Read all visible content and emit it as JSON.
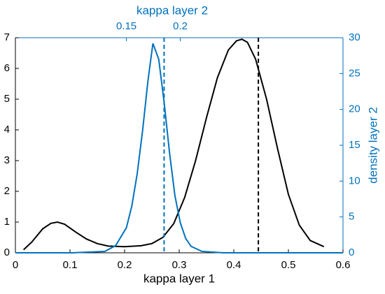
{
  "chart_data": {
    "type": "line",
    "xlabel": "kappa layer 1",
    "x2label": "kappa layer 2",
    "y2label": "density layer 2",
    "xlim": [
      0,
      0.6
    ],
    "xticks": [
      0,
      0.1,
      0.2,
      0.3,
      0.4,
      0.5,
      0.6
    ],
    "x2lim": [
      0.047,
      0.351
    ],
    "x2ticks": [
      0.15,
      0.2
    ],
    "ylim": [
      0,
      7
    ],
    "yticks": [
      0,
      1,
      2,
      3,
      4,
      5,
      6,
      7
    ],
    "y2lim": [
      0,
      30
    ],
    "y2ticks": [
      0,
      5,
      10,
      15,
      20,
      25,
      30
    ],
    "axis_color": "#000000",
    "axis2_color": "#0072bd",
    "series": [
      {
        "color": "#000000",
        "axis": "y",
        "x": [
          0.015,
          0.03,
          0.05,
          0.065,
          0.077,
          0.09,
          0.11,
          0.13,
          0.15,
          0.17,
          0.2,
          0.23,
          0.25,
          0.27,
          0.29,
          0.31,
          0.33,
          0.35,
          0.37,
          0.39,
          0.405,
          0.415,
          0.425,
          0.44,
          0.46,
          0.48,
          0.5,
          0.52,
          0.54,
          0.565
        ],
        "values": [
          0.1,
          0.35,
          0.78,
          0.96,
          1.0,
          0.93,
          0.68,
          0.45,
          0.3,
          0.22,
          0.2,
          0.23,
          0.3,
          0.5,
          0.95,
          1.8,
          3.0,
          4.4,
          5.7,
          6.6,
          6.9,
          6.95,
          6.85,
          6.3,
          5.0,
          3.4,
          1.9,
          0.9,
          0.4,
          0.2
        ]
      },
      {
        "color": "#0072bd",
        "axis": "y2",
        "xaxis": "x2",
        "x": [
          0.047,
          0.1,
          0.13,
          0.14,
          0.15,
          0.155,
          0.16,
          0.165,
          0.17,
          0.1746,
          0.18,
          0.185,
          0.19,
          0.195,
          0.2,
          0.205,
          0.21,
          0.22,
          0.24,
          0.3,
          0.351
        ],
        "values": [
          0,
          0,
          0.2,
          1,
          3.5,
          6.5,
          11,
          17,
          24,
          29.2,
          27,
          21,
          14,
          8,
          4.2,
          2,
          0.9,
          0.2,
          0,
          0,
          0
        ]
      }
    ],
    "reference_lines": [
      {
        "x": 0.445,
        "xaxis": "x",
        "color": "#000000"
      },
      {
        "x": 0.185,
        "xaxis": "x2",
        "color": "#0072bd"
      }
    ]
  }
}
